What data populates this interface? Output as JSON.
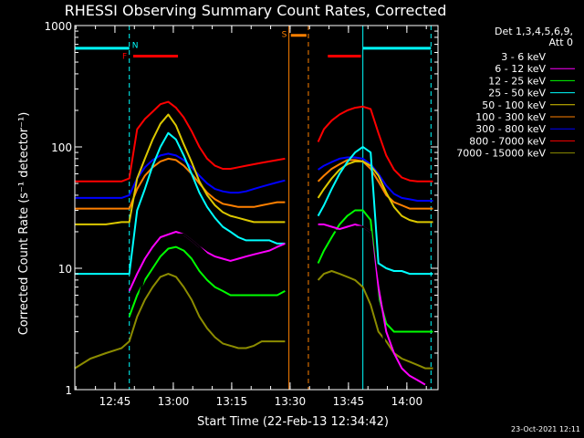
{
  "chart_data": {
    "type": "line",
    "title": "RHESSI Observing Summary Count Rates, Corrected",
    "xlabel": "Start Time (22-Feb-13 12:34:42)",
    "ylabel": "Corrected Count Rate (s⁻¹ detector⁻¹)",
    "x_unit": "minutes since 12:34:42",
    "xlim": [
      0,
      93.3
    ],
    "ylim": [
      1,
      1000
    ],
    "yscale": "log",
    "x_ticks": [
      {
        "t": 10.3,
        "label": "12:45"
      },
      {
        "t": 25.3,
        "label": "13:00"
      },
      {
        "t": 40.3,
        "label": "13:15"
      },
      {
        "t": 55.3,
        "label": "13:30"
      },
      {
        "t": 70.3,
        "label": "13:45"
      },
      {
        "t": 85.3,
        "label": "14:00"
      }
    ],
    "y_ticks": [
      {
        "v": 1,
        "label": "1"
      },
      {
        "v": 10,
        "label": "10"
      },
      {
        "v": 100,
        "label": "100"
      },
      {
        "v": 1000,
        "label": "1000"
      }
    ],
    "legend_header": [
      "Det 1,3,4,5,6,9,",
      "Att 0"
    ],
    "legend_position": "top-right",
    "series": [
      {
        "name": "3 - 6 keV",
        "color": "#000000",
        "x": [
          14.0,
          16,
          18,
          20,
          22,
          24,
          26,
          28,
          30,
          32,
          34,
          36,
          38,
          40,
          42,
          44,
          46,
          48,
          50,
          52,
          54,
          62.5,
          64,
          66,
          68,
          70,
          72,
          74,
          76,
          78,
          80,
          82
        ],
        "y": [
          3.0,
          5,
          9,
          13,
          16,
          18,
          19,
          19,
          17,
          15,
          13,
          12,
          11,
          11,
          11,
          11,
          12,
          12,
          13,
          13,
          14,
          22,
          22,
          21,
          20,
          21,
          22,
          22,
          20,
          5,
          2,
          1.5
        ]
      },
      {
        "name": "6 - 12 keV",
        "color": "#ff00ff",
        "x": [
          14.0,
          16,
          18,
          20,
          22,
          24,
          26,
          28,
          30,
          32,
          34,
          36,
          38,
          40,
          42,
          44,
          46,
          48,
          50,
          52,
          54,
          62.5,
          64,
          66,
          68,
          70,
          72,
          74,
          76,
          78,
          80,
          82,
          84,
          86,
          88,
          90
        ],
        "y": [
          6.5,
          9,
          12,
          15,
          18,
          19,
          20,
          19,
          17,
          15,
          13.5,
          12.5,
          12,
          11.5,
          12,
          12.5,
          13,
          13.5,
          14,
          15,
          16,
          23,
          23,
          22,
          21,
          22,
          23,
          22,
          20,
          7,
          3,
          2,
          1.5,
          1.3,
          1.2,
          1.1
        ]
      },
      {
        "name": "12 - 25 keV",
        "color": "#00ff00",
        "x": [
          14.0,
          16,
          18,
          20,
          22,
          24,
          26,
          28,
          30,
          32,
          34,
          36,
          38,
          40,
          42,
          44,
          46,
          48,
          50,
          52,
          54,
          62.5,
          64,
          66,
          68,
          70,
          72,
          74,
          76,
          78,
          80,
          82,
          84,
          86,
          88,
          90,
          92
        ],
        "y": [
          4,
          6,
          8,
          10,
          12.5,
          14.5,
          15,
          14,
          12,
          9.5,
          8,
          7,
          6.5,
          6,
          6,
          6,
          6,
          6,
          6,
          6,
          6.5,
          11,
          14,
          18,
          23,
          27,
          30,
          30,
          25,
          6,
          3.5,
          3,
          3,
          3,
          3,
          3,
          3
        ]
      },
      {
        "name": "25 - 50 keV",
        "color": "#00ffff",
        "x": [
          0,
          4,
          8,
          12,
          14.0,
          16,
          18,
          20,
          22,
          24,
          26,
          28,
          30,
          32,
          34,
          36,
          38,
          40,
          42,
          44,
          46,
          48,
          50,
          52,
          54,
          62.5,
          64,
          66,
          68,
          70,
          72,
          74,
          76,
          78,
          80,
          82,
          84,
          86,
          88,
          90,
          92
        ],
        "y": [
          9,
          9,
          9,
          9,
          9,
          30,
          45,
          70,
          100,
          130,
          115,
          85,
          60,
          42,
          32,
          26,
          22,
          20,
          18,
          17,
          17,
          17,
          17,
          16,
          16,
          27,
          33,
          45,
          60,
          75,
          90,
          100,
          90,
          11,
          10,
          9.5,
          9.5,
          9,
          9,
          9,
          9
        ]
      },
      {
        "name": "50 - 100 keV",
        "color": "#dcc800",
        "x": [
          0,
          4,
          8,
          12,
          14.0,
          16,
          18,
          20,
          22,
          24,
          26,
          28,
          30,
          32,
          34,
          36,
          38,
          40,
          42,
          44,
          46,
          48,
          50,
          52,
          54,
          62.5,
          64,
          66,
          68,
          70,
          72,
          74,
          76,
          78,
          80,
          82,
          84,
          86,
          88,
          90,
          92
        ],
        "y": [
          23,
          23,
          23,
          24,
          24,
          55,
          80,
          115,
          155,
          185,
          150,
          105,
          75,
          52,
          40,
          33,
          29,
          27,
          26,
          25,
          24,
          24,
          24,
          24,
          24,
          38,
          45,
          55,
          65,
          72,
          76,
          76,
          70,
          58,
          42,
          32,
          27,
          25,
          24,
          24,
          24
        ]
      },
      {
        "name": "100 - 300 keV",
        "color": "#ff8000",
        "x": [
          0,
          4,
          8,
          12,
          14.0,
          16,
          18,
          20,
          22,
          24,
          26,
          28,
          30,
          32,
          34,
          36,
          38,
          40,
          42,
          44,
          46,
          48,
          50,
          52,
          54,
          62.5,
          64,
          66,
          68,
          70,
          72,
          74,
          76,
          78,
          80,
          82,
          84,
          86,
          88,
          90,
          92
        ],
        "y": [
          31,
          31,
          31,
          31,
          31,
          45,
          58,
          68,
          76,
          80,
          78,
          70,
          60,
          50,
          42,
          37,
          34,
          33,
          32,
          32,
          32,
          33,
          34,
          35,
          35,
          52,
          58,
          66,
          72,
          78,
          78,
          76,
          66,
          52,
          40,
          35,
          33,
          31,
          31,
          31,
          31
        ]
      },
      {
        "name": "300 - 800 keV",
        "color": "#0000ff",
        "x": [
          0,
          4,
          8,
          12,
          14.0,
          16,
          18,
          20,
          22,
          24,
          26,
          28,
          30,
          32,
          34,
          36,
          38,
          40,
          42,
          44,
          46,
          48,
          50,
          52,
          54,
          62.5,
          64,
          66,
          68,
          70,
          72,
          74,
          76,
          78,
          80,
          82,
          84,
          86,
          88,
          90,
          92
        ],
        "y": [
          38,
          38,
          38,
          38,
          40,
          55,
          68,
          78,
          85,
          88,
          85,
          78,
          68,
          58,
          50,
          45,
          43,
          42,
          42,
          43,
          45,
          47,
          49,
          51,
          53,
          65,
          70,
          75,
          80,
          82,
          82,
          80,
          72,
          60,
          48,
          41,
          38,
          37,
          36,
          36,
          36
        ]
      },
      {
        "name": "800 - 7000 keV",
        "color": "#ff0000",
        "x": [
          0,
          4,
          8,
          12,
          14.0,
          16,
          18,
          20,
          22,
          24,
          26,
          28,
          30,
          32,
          34,
          36,
          38,
          40,
          42,
          44,
          46,
          48,
          50,
          52,
          54,
          62.5,
          64,
          66,
          68,
          70,
          72,
          74,
          76,
          78,
          80,
          82,
          84,
          86,
          88,
          90,
          92
        ],
        "y": [
          52,
          52,
          52,
          52,
          55,
          140,
          170,
          195,
          225,
          235,
          210,
          175,
          135,
          100,
          80,
          70,
          66,
          66,
          68,
          70,
          72,
          74,
          76,
          78,
          80,
          110,
          140,
          165,
          185,
          200,
          210,
          215,
          205,
          130,
          85,
          65,
          56,
          53,
          52,
          52,
          52
        ]
      },
      {
        "name": "7000 - 15000 keV",
        "color": "#8c8c00",
        "x": [
          0,
          4,
          8,
          12,
          14.0,
          16,
          18,
          20,
          22,
          24,
          26,
          28,
          30,
          32,
          34,
          36,
          38,
          40,
          42,
          44,
          46,
          48,
          50,
          52,
          54,
          62.5,
          64,
          66,
          68,
          70,
          72,
          74,
          76,
          78,
          80,
          82,
          84,
          86,
          88,
          90,
          92
        ],
        "y": [
          1.5,
          1.8,
          2,
          2.2,
          2.5,
          4,
          5.5,
          7,
          8.5,
          9,
          8.5,
          7,
          5.5,
          4,
          3.2,
          2.7,
          2.4,
          2.3,
          2.2,
          2.2,
          2.3,
          2.5,
          2.5,
          2.5,
          2.5,
          8,
          9,
          9.5,
          9,
          8.5,
          8,
          7,
          5,
          3,
          2.5,
          2,
          1.8,
          1.7,
          1.6,
          1.5,
          1.5
        ]
      }
    ],
    "vertical_lines": [
      {
        "t": 14.0,
        "color": "#00ffff",
        "dash": true
      },
      {
        "t": 55.0,
        "color": "#ff8000",
        "dash": false
      },
      {
        "t": 60.0,
        "color": "#ff8000",
        "dash": true
      },
      {
        "t": 74.0,
        "color": "#00ffff",
        "dash": false
      },
      {
        "t": 91.5,
        "color": "#00ffff",
        "dash": true
      }
    ],
    "flags": [
      {
        "t0": 0,
        "t1": 14.0,
        "v": 650,
        "color": "#00ffff",
        "label": "N",
        "label_t": 15.5,
        "label_v": 690
      },
      {
        "t0": 74.0,
        "t1": 91.5,
        "v": 650,
        "color": "#00ffff",
        "label": "",
        "label_t": 0,
        "label_v": 0
      },
      {
        "t0": 15.0,
        "t1": 26.5,
        "v": 560,
        "color": "#ff0000",
        "label": "F",
        "label_t": 12.8,
        "label_v": 560
      },
      {
        "t0": 65.0,
        "t1": 73.5,
        "v": 560,
        "color": "#ff0000",
        "label": "",
        "label_t": 0,
        "label_v": 0
      },
      {
        "t0": 55.5,
        "t1": 59.5,
        "v": 830,
        "color": "#ff8000",
        "label": "S",
        "label_t": 53.8,
        "label_v": 850
      }
    ]
  },
  "footer_date": "23-Oct-2021 12:11"
}
